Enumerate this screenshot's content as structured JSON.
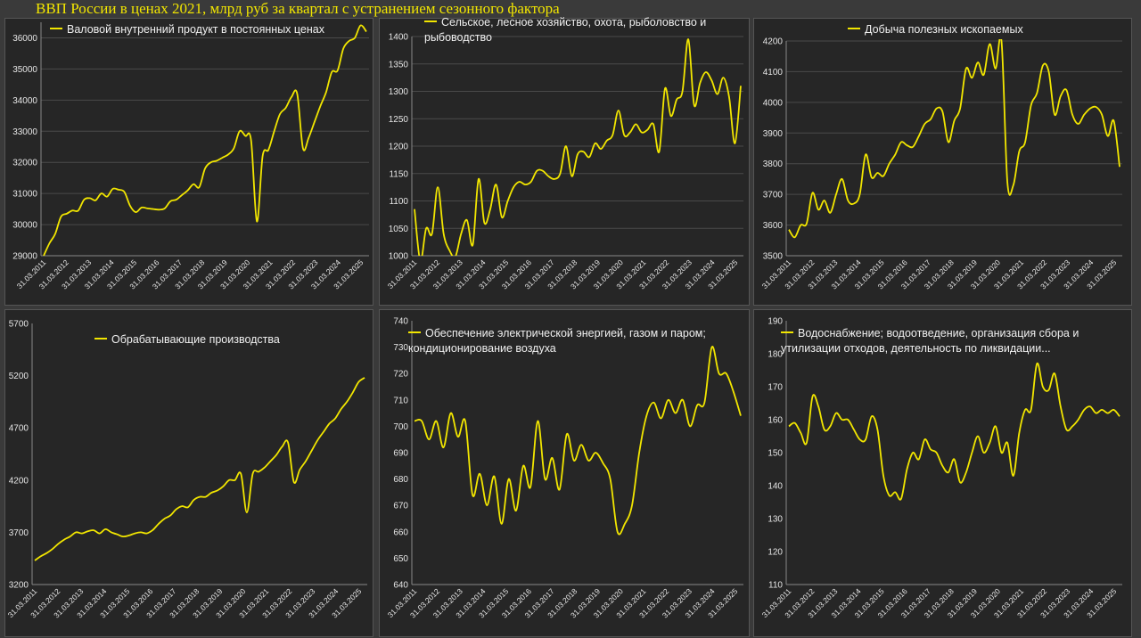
{
  "page": {
    "title": "ВВП России в ценах 2021, млрд руб за квартал с устранением сезонного фактора",
    "title_color": "#f2e600",
    "line_color": "#f2e600",
    "panel_bg": "#262626"
  },
  "chart_data": [
    {
      "type": "line",
      "series_name": "Валовой внутренний продукт в постоянных ценах",
      "ylim": [
        29000,
        36500
      ],
      "yticks": [
        29000,
        30000,
        31000,
        32000,
        33000,
        34000,
        35000,
        36000
      ],
      "xticks": [
        "31.03.2011",
        "31.03.2012",
        "31.03.2013",
        "31.03.2014",
        "31.03.2015",
        "31.03.2016",
        "31.03.2017",
        "31.03.2018",
        "31.03.2019",
        "31.03.2020",
        "31.03.2021",
        "31.03.2022",
        "31.03.2023",
        "31.03.2024",
        "31.03.2025"
      ],
      "grid": true,
      "values": [
        29000,
        29400,
        29700,
        30250,
        30350,
        30450,
        30450,
        30800,
        30850,
        30780,
        31000,
        30900,
        31150,
        31120,
        31050,
        30600,
        30400,
        30550,
        30520,
        30500,
        30480,
        30520,
        30750,
        30800,
        30950,
        31100,
        31300,
        31200,
        31800,
        32000,
        32050,
        32150,
        32250,
        32450,
        33000,
        32850,
        32700,
        30100,
        32200,
        32400,
        33000,
        33550,
        33750,
        34100,
        34200,
        32450,
        32800,
        33300,
        33800,
        34250,
        34900,
        34950,
        35650,
        35900,
        36000,
        36400,
        36200
      ]
    },
    {
      "type": "line",
      "series_name": "Сельское, лесное хозяйство, охота, рыболовство и рыбоводство",
      "ylim": [
        1000,
        1400
      ],
      "yticks": [
        1000,
        1050,
        1100,
        1150,
        1200,
        1250,
        1300,
        1350,
        1400
      ],
      "xticks": [
        "31.03.2011",
        "31.03.2012",
        "31.03.2013",
        "31.03.2014",
        "31.03.2015",
        "31.03.2016",
        "31.03.2017",
        "31.03.2018",
        "31.03.2019",
        "31.03.2020",
        "31.03.2021",
        "31.03.2022",
        "31.03.2023",
        "31.03.2024",
        "31.03.2025"
      ],
      "grid": true,
      "values": [
        1085,
        990,
        1050,
        1040,
        1125,
        1040,
        1010,
        998,
        1040,
        1065,
        1020,
        1140,
        1060,
        1085,
        1130,
        1070,
        1100,
        1125,
        1135,
        1130,
        1135,
        1155,
        1155,
        1145,
        1140,
        1150,
        1200,
        1145,
        1185,
        1190,
        1180,
        1205,
        1195,
        1210,
        1220,
        1265,
        1220,
        1225,
        1240,
        1225,
        1230,
        1240,
        1190,
        1305,
        1255,
        1285,
        1300,
        1395,
        1275,
        1315,
        1335,
        1320,
        1295,
        1325,
        1290,
        1205,
        1310
      ]
    },
    {
      "type": "line",
      "series_name": "Добыча полезных ископаемых",
      "ylim": [
        3500,
        4200
      ],
      "yticks": [
        3500,
        3600,
        3700,
        3800,
        3900,
        4000,
        4100,
        4200
      ],
      "xticks": [
        "31.03.2011",
        "31.03.2012",
        "31.03.2013",
        "31.03.2014",
        "31.03.2015",
        "31.03.2016",
        "31.03.2017",
        "31.03.2018",
        "31.03.2019",
        "31.03.2020",
        "31.03.2021",
        "31.03.2022",
        "31.03.2023",
        "31.03.2024",
        "31.03.2025"
      ],
      "grid": true,
      "values": [
        3585,
        3560,
        3600,
        3605,
        3705,
        3650,
        3680,
        3640,
        3700,
        3750,
        3680,
        3670,
        3700,
        3830,
        3755,
        3770,
        3760,
        3800,
        3830,
        3870,
        3860,
        3855,
        3890,
        3930,
        3945,
        3980,
        3970,
        3870,
        3940,
        3980,
        4110,
        4080,
        4130,
        4090,
        4190,
        4110,
        4200,
        3740,
        3730,
        3840,
        3870,
        3990,
        4030,
        4120,
        4100,
        3960,
        4020,
        4040,
        3960,
        3930,
        3960,
        3980,
        3985,
        3960,
        3890,
        3940,
        3790
      ]
    },
    {
      "type": "line",
      "series_name": "Обрабатывающие производства",
      "ylim": [
        3200,
        5700
      ],
      "yticks": [
        3200,
        3700,
        4200,
        4700,
        5200,
        5700
      ],
      "xticks": [
        "31.03.2011",
        "31.03.2012",
        "31.03.2013",
        "31.03.2014",
        "31.03.2015",
        "31.03.2016",
        "31.03.2017",
        "31.03.2018",
        "31.03.2019",
        "31.03.2020",
        "31.03.2021",
        "31.03.2022",
        "31.03.2023",
        "31.03.2024",
        "31.03.2025"
      ],
      "grid": false,
      "values": [
        3430,
        3470,
        3500,
        3540,
        3590,
        3630,
        3660,
        3700,
        3690,
        3710,
        3720,
        3690,
        3730,
        3700,
        3680,
        3660,
        3670,
        3690,
        3700,
        3690,
        3720,
        3780,
        3830,
        3860,
        3920,
        3950,
        3940,
        4010,
        4040,
        4040,
        4080,
        4100,
        4140,
        4200,
        4200,
        4260,
        3890,
        4260,
        4280,
        4320,
        4380,
        4440,
        4520,
        4560,
        4180,
        4300,
        4380,
        4480,
        4580,
        4660,
        4740,
        4790,
        4880,
        4950,
        5040,
        5140,
        5180
      ]
    },
    {
      "type": "line",
      "series_name": "Обеспечение электрической энергией, газом и паром; кондиционирование воздуха",
      "ylim": [
        640,
        740
      ],
      "yticks": [
        640,
        650,
        660,
        670,
        680,
        690,
        700,
        710,
        720,
        730,
        740
      ],
      "xticks": [
        "31.03.2011",
        "31.03.2012",
        "31.03.2013",
        "31.03.2014",
        "31.03.2015",
        "31.03.2016",
        "31.03.2017",
        "31.03.2018",
        "31.03.2019",
        "31.03.2020",
        "31.03.2021",
        "31.03.2022",
        "31.03.2023",
        "31.03.2024",
        "31.03.2025"
      ],
      "grid": false,
      "values": [
        702,
        702,
        695,
        702,
        692,
        705,
        696,
        702,
        674,
        682,
        670,
        681,
        663,
        680,
        668,
        685,
        677,
        702,
        680,
        688,
        676,
        697,
        687,
        693,
        687,
        690,
        686,
        680,
        660,
        663,
        670,
        690,
        704,
        709,
        703,
        710,
        705,
        710,
        700,
        708,
        709,
        730,
        720,
        720,
        713,
        704
      ]
    },
    {
      "type": "line",
      "series_name": "Водоснабжение; водоотведение, организация сбора и утилизации отходов, деятельность по ликвидации...",
      "ylim": [
        110,
        190
      ],
      "yticks": [
        110,
        120,
        130,
        140,
        150,
        160,
        170,
        180,
        190
      ],
      "xticks": [
        "31.03.2011",
        "31.03.2012",
        "31.03.2013",
        "31.03.2014",
        "31.03.2015",
        "31.03.2016",
        "31.03.2017",
        "31.03.2018",
        "31.03.2019",
        "31.03.2020",
        "31.03.2021",
        "31.03.2022",
        "31.03.2023",
        "31.03.2024",
        "31.03.2025"
      ],
      "grid": false,
      "values": [
        158,
        159,
        156,
        153,
        167,
        164,
        157,
        158,
        162,
        160,
        160,
        157,
        154,
        154,
        161,
        157,
        143,
        137,
        138,
        136,
        145,
        150,
        148,
        154,
        151,
        150,
        146,
        144,
        148,
        141,
        144,
        150,
        155,
        150,
        153,
        158,
        150,
        153,
        143,
        156,
        163,
        163,
        177,
        170,
        169,
        174,
        164,
        157,
        158,
        160,
        163,
        164,
        162,
        163,
        162,
        163,
        161
      ]
    }
  ]
}
